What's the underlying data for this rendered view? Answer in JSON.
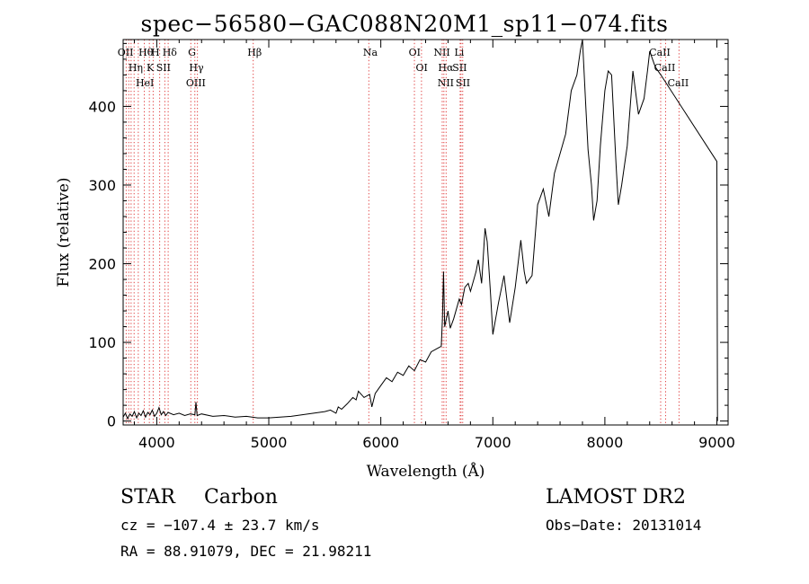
{
  "header": {
    "title": "spec−56580−GAC088N20M1_sp11−074.fits"
  },
  "info": {
    "class": "STAR",
    "subclass": "Carbon",
    "cz": "cz = −107.4 ± 23.7 km/s",
    "radec": "RA =  88.91079, DEC =  21.98211",
    "survey": "LAMOST DR2",
    "obs_date": "Obs−Date: 20131014"
  },
  "chart_data": {
    "type": "line",
    "title": "spec−56580−GAC088N20M1_sp11−074.fits",
    "xlabel": "Wavelength (Å)",
    "ylabel": "Flux (relative)",
    "xlim": [
      3700,
      9100
    ],
    "ylim": [
      -5,
      485
    ],
    "xticks": [
      4000,
      5000,
      6000,
      7000,
      8000,
      9000
    ],
    "yticks": [
      0,
      100,
      200,
      300,
      400
    ],
    "grid": false,
    "line_color": "#000000",
    "marker_color": "#e04040",
    "series": [
      {
        "points": [
          [
            3700,
            5
          ],
          [
            3720,
            10
          ],
          [
            3740,
            3
          ],
          [
            3760,
            9
          ],
          [
            3780,
            6
          ],
          [
            3800,
            12
          ],
          [
            3820,
            4
          ],
          [
            3840,
            10
          ],
          [
            3860,
            7
          ],
          [
            3880,
            13
          ],
          [
            3900,
            5
          ],
          [
            3920,
            11
          ],
          [
            3940,
            8
          ],
          [
            3960,
            14
          ],
          [
            3980,
            6
          ],
          [
            4000,
            10
          ],
          [
            4020,
            17
          ],
          [
            4040,
            8
          ],
          [
            4060,
            12
          ],
          [
            4080,
            7
          ],
          [
            4100,
            11
          ],
          [
            4150,
            8
          ],
          [
            4200,
            10
          ],
          [
            4250,
            7
          ],
          [
            4300,
            9
          ],
          [
            4340,
            8
          ],
          [
            4350,
            24
          ],
          [
            4360,
            7
          ],
          [
            4400,
            9
          ],
          [
            4500,
            6
          ],
          [
            4600,
            7
          ],
          [
            4700,
            5
          ],
          [
            4800,
            6
          ],
          [
            4900,
            4
          ],
          [
            5000,
            4
          ],
          [
            5100,
            5
          ],
          [
            5200,
            6
          ],
          [
            5300,
            8
          ],
          [
            5400,
            10
          ],
          [
            5500,
            12
          ],
          [
            5550,
            14
          ],
          [
            5600,
            10
          ],
          [
            5620,
            18
          ],
          [
            5650,
            15
          ],
          [
            5700,
            22
          ],
          [
            5750,
            30
          ],
          [
            5780,
            27
          ],
          [
            5800,
            38
          ],
          [
            5850,
            30
          ],
          [
            5900,
            34
          ],
          [
            5920,
            18
          ],
          [
            5950,
            35
          ],
          [
            6000,
            45
          ],
          [
            6050,
            55
          ],
          [
            6100,
            50
          ],
          [
            6150,
            62
          ],
          [
            6200,
            58
          ],
          [
            6250,
            70
          ],
          [
            6300,
            64
          ],
          [
            6350,
            78
          ],
          [
            6400,
            75
          ],
          [
            6450,
            88
          ],
          [
            6500,
            92
          ],
          [
            6540,
            95
          ],
          [
            6550,
            130
          ],
          [
            6560,
            190
          ],
          [
            6570,
            120
          ],
          [
            6600,
            140
          ],
          [
            6620,
            118
          ],
          [
            6650,
            130
          ],
          [
            6700,
            155
          ],
          [
            6720,
            148
          ],
          [
            6750,
            170
          ],
          [
            6780,
            175
          ],
          [
            6800,
            165
          ],
          [
            6850,
            190
          ],
          [
            6870,
            205
          ],
          [
            6900,
            175
          ],
          [
            6930,
            245
          ],
          [
            6950,
            228
          ],
          [
            6980,
            160
          ],
          [
            7000,
            110
          ],
          [
            7050,
            150
          ],
          [
            7100,
            185
          ],
          [
            7150,
            125
          ],
          [
            7200,
            170
          ],
          [
            7250,
            230
          ],
          [
            7280,
            190
          ],
          [
            7300,
            175
          ],
          [
            7350,
            185
          ],
          [
            7400,
            275
          ],
          [
            7450,
            295
          ],
          [
            7500,
            260
          ],
          [
            7550,
            315
          ],
          [
            7600,
            340
          ],
          [
            7650,
            365
          ],
          [
            7700,
            420
          ],
          [
            7750,
            440
          ],
          [
            7780,
            470
          ],
          [
            7800,
            485
          ],
          [
            7830,
            400
          ],
          [
            7850,
            345
          ],
          [
            7880,
            300
          ],
          [
            7900,
            255
          ],
          [
            7930,
            280
          ],
          [
            7960,
            350
          ],
          [
            8000,
            420
          ],
          [
            8030,
            445
          ],
          [
            8060,
            440
          ],
          [
            8100,
            325
          ],
          [
            8120,
            275
          ],
          [
            8150,
            300
          ],
          [
            8200,
            350
          ],
          [
            8250,
            445
          ],
          [
            8300,
            390
          ],
          [
            8350,
            410
          ],
          [
            8380,
            445
          ],
          [
            8400,
            470
          ],
          [
            8450,
            450
          ],
          [
            8500,
            440
          ],
          [
            9000,
            330
          ],
          [
            9005,
            0
          ]
        ]
      }
    ],
    "lines": [
      {
        "wavelength": 3727,
        "labels": [
          "OII"
        ]
      },
      {
        "wavelength": 3750,
        "labels": []
      },
      {
        "wavelength": 3771,
        "labels": []
      },
      {
        "wavelength": 3798,
        "labels": [
          "Hη"
        ]
      },
      {
        "wavelength": 3835,
        "labels": []
      },
      {
        "wavelength": 3889,
        "labels": [
          "Hθ",
          "HeI"
        ]
      },
      {
        "wavelength": 3934,
        "labels": [
          "K"
        ]
      },
      {
        "wavelength": 3968,
        "labels": [
          "H"
        ]
      },
      {
        "wavelength": 4026,
        "labels": []
      },
      {
        "wavelength": 4072,
        "labels": [
          "SII"
        ]
      },
      {
        "wavelength": 4102,
        "labels": [
          "Hδ"
        ]
      },
      {
        "wavelength": 4304,
        "labels": [
          "G"
        ]
      },
      {
        "wavelength": 4340,
        "labels": [
          "Hγ"
        ]
      },
      {
        "wavelength": 4363,
        "labels": [
          "OIII"
        ]
      },
      {
        "wavelength": 4861,
        "labels": [
          "Hβ"
        ]
      },
      {
        "wavelength": 5893,
        "labels": [
          "Na"
        ]
      },
      {
        "wavelength": 6300,
        "labels": [
          "OI"
        ]
      },
      {
        "wavelength": 6363,
        "labels": [
          "OI"
        ]
      },
      {
        "wavelength": 6548,
        "labels": [
          "NII"
        ]
      },
      {
        "wavelength": 6563,
        "labels": [
          "Hα"
        ]
      },
      {
        "wavelength": 6583,
        "labels": [
          "NII"
        ]
      },
      {
        "wavelength": 6708,
        "labels": [
          "Li"
        ]
      },
      {
        "wavelength": 6716,
        "labels": [
          "SII"
        ]
      },
      {
        "wavelength": 6731,
        "labels": [
          "SII"
        ]
      },
      {
        "wavelength": 8498,
        "labels": [
          "CaII"
        ]
      },
      {
        "wavelength": 8542,
        "labels": [
          "CaII"
        ]
      },
      {
        "wavelength": 8662,
        "labels": [
          "CaII"
        ]
      }
    ]
  }
}
